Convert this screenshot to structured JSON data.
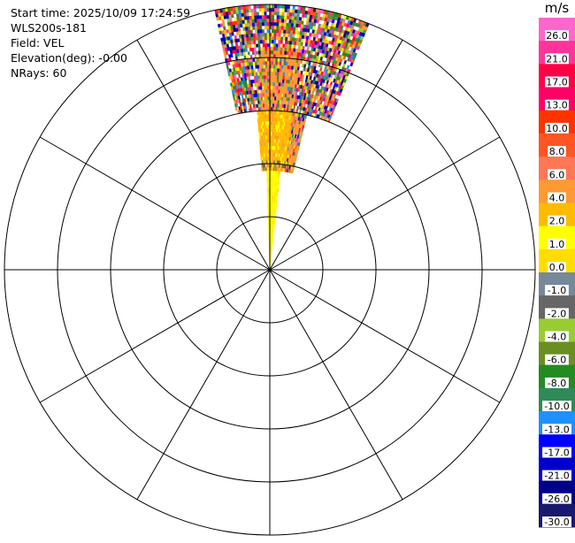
{
  "header": {
    "start_time": "Start time: 2025/10/09 17:24:59",
    "instrument": "WLS200s-181",
    "field": "Field: VEL",
    "elevation": "Elevation(deg): -0.00",
    "nrays": "NRays: 60"
  },
  "colorbar": {
    "unit": "m/s",
    "ticks": [
      "26.0",
      "21.0",
      "17.0",
      "13.0",
      "10.0",
      "8.0",
      "6.0",
      "4.0",
      "2.0",
      "1.0",
      "0.0",
      "-1.0",
      "-2.0",
      "-4.0",
      "-6.0",
      "-8.0",
      "-10.0",
      "-13.0",
      "-17.0",
      "-21.0",
      "-26.0",
      "-30.0"
    ],
    "colors": [
      "#ff66cc",
      "#ff3399",
      "#ff0044",
      "#ff0066",
      "#ff3300",
      "#ff5522",
      "#ff7755",
      "#ff9933",
      "#ffbb00",
      "#ffff00",
      "#ffdd00",
      "#778899",
      "#666666",
      "#99cc33",
      "#6b8e23",
      "#228b22",
      "#2e8b57",
      "#1e90ff",
      "#0000ff",
      "#0000cc",
      "#000088",
      "#191970"
    ]
  },
  "chart_data": {
    "type": "heatmap",
    "projection": "polar PPI",
    "field": "VEL",
    "units": "m/s",
    "nrays": 60,
    "range_rings": 5,
    "radial_lines_deg": 30,
    "sector_azimuth_deg": [
      -12,
      22
    ],
    "regions": [
      {
        "range_fraction": [
          0.0,
          0.38
        ],
        "velocity_m_s": [
          2.0,
          4.0
        ],
        "description_color": "yellow"
      },
      {
        "range_fraction": [
          0.38,
          0.6
        ],
        "velocity_m_s": [
          4.0,
          6.0
        ],
        "description_color": "orange"
      },
      {
        "range_fraction": [
          0.6,
          1.0
        ],
        "velocity_m_s": [
          -30.0,
          26.0
        ],
        "description_color": "noisy mixed"
      }
    ]
  }
}
